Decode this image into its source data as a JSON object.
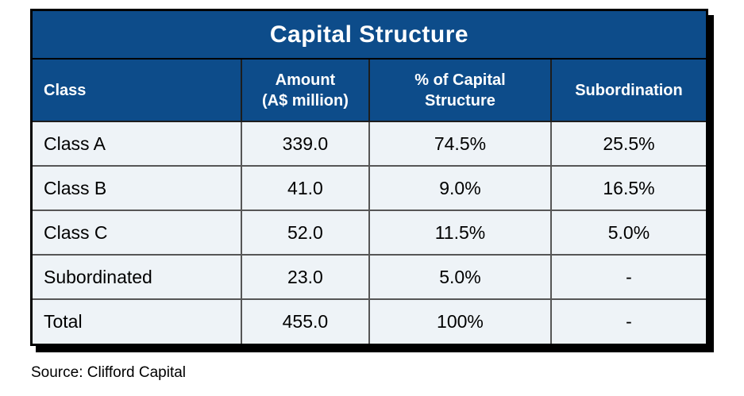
{
  "title": "Capital Structure",
  "colors": {
    "header_blue": "#0d4c8a",
    "row_background": "#eef3f7",
    "grid_line": "#565656",
    "frame_black": "#000000",
    "header_text": "#ffffff",
    "body_text": "#000000"
  },
  "table": {
    "headers": [
      "Class",
      "Amount\n(A$ million)",
      "% of Capital\nStructure",
      "Subordination"
    ],
    "rows": [
      {
        "cells": [
          "Class A",
          "339.0",
          "74.5%",
          "25.5%"
        ]
      },
      {
        "cells": [
          "Class B",
          "41.0",
          "9.0%",
          "16.5%"
        ]
      },
      {
        "cells": [
          "Class C",
          "52.0",
          "11.5%",
          "5.0%"
        ]
      },
      {
        "cells": [
          "Subordinated",
          "23.0",
          "5.0%",
          "-"
        ]
      },
      {
        "cells": [
          "Total",
          "455.0",
          "100%",
          "-"
        ]
      }
    ]
  },
  "source": "Source: Clifford Capital",
  "chart_data": {
    "type": "table",
    "title": "Capital Structure",
    "columns": [
      "Class",
      "Amount (A$ million)",
      "% of Capital Structure",
      "Subordination"
    ],
    "rows": [
      [
        "Class A",
        339.0,
        "74.5%",
        "25.5%"
      ],
      [
        "Class B",
        41.0,
        "9.0%",
        "16.5%"
      ],
      [
        "Class C",
        52.0,
        "11.5%",
        "5.0%"
      ],
      [
        "Subordinated",
        23.0,
        "5.0%",
        "-"
      ],
      [
        "Total",
        455.0,
        "100%",
        "-"
      ]
    ],
    "source": "Source: Clifford Capital"
  }
}
